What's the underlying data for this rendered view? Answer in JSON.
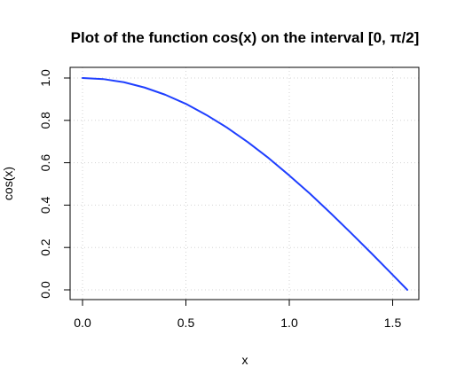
{
  "chart_data": {
    "type": "line",
    "title": "Plot of the function cos(x) on the interval [0, π/2]",
    "xlabel": "x",
    "ylabel": "cos(x)",
    "xlim": [
      0,
      1.6
    ],
    "ylim": [
      0,
      1.0
    ],
    "x_ticks": [
      "0.0",
      "0.5",
      "1.0",
      "1.5"
    ],
    "y_ticks": [
      "0.0",
      "0.2",
      "0.4",
      "0.6",
      "0.8",
      "1.0"
    ],
    "grid": true,
    "legend": "none",
    "line_color": "#1f3fff",
    "series": [
      {
        "x": [
          0.0,
          0.1,
          0.2,
          0.3,
          0.4,
          0.5,
          0.6,
          0.7,
          0.8,
          0.9,
          1.0,
          1.1,
          1.2,
          1.3,
          1.4,
          1.5,
          1.5708
        ],
        "values": [
          1.0,
          0.995,
          0.98,
          0.955,
          0.921,
          0.878,
          0.825,
          0.765,
          0.697,
          0.622,
          0.54,
          0.454,
          0.362,
          0.267,
          0.17,
          0.071,
          0.0
        ]
      }
    ]
  }
}
